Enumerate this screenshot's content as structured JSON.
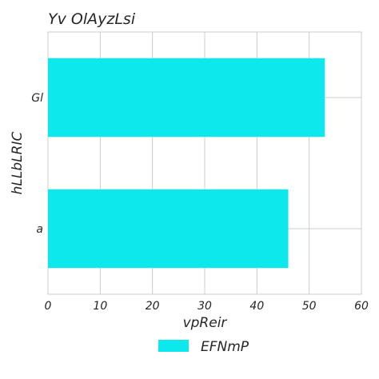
{
  "chart_data": {
    "type": "bar",
    "orientation": "horizontal",
    "title": "Yv OlAyzLsi",
    "xlabel": "vpReir",
    "ylabel": "hLLbLRIC",
    "categories": [
      "Gl",
      "a"
    ],
    "series": [
      {
        "name": "EFNmP",
        "values": [
          53,
          46
        ]
      }
    ],
    "xlim": [
      0,
      60
    ],
    "xticks": [
      "0",
      "10",
      "20",
      "30",
      "40",
      "50",
      "60"
    ],
    "grid": true,
    "legend_position": "bottom-center",
    "colors": {
      "bar": "#0de8ec",
      "grid": "#cccccc",
      "text": "#262626"
    }
  }
}
